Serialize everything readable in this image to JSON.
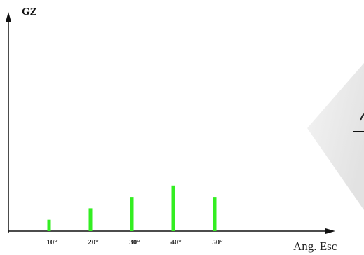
{
  "chart_data": {
    "type": "bar",
    "ylabel": "GZ",
    "xlabel": "Ang. Esc",
    "categories": [
      "10°",
      "20°",
      "30°",
      "40°",
      "50°"
    ],
    "x": [
      10,
      20,
      30,
      40,
      50
    ],
    "values": [
      1,
      2,
      3,
      4,
      3
    ],
    "bar_color": "#33ee22",
    "grid": false,
    "legend": "none"
  }
}
